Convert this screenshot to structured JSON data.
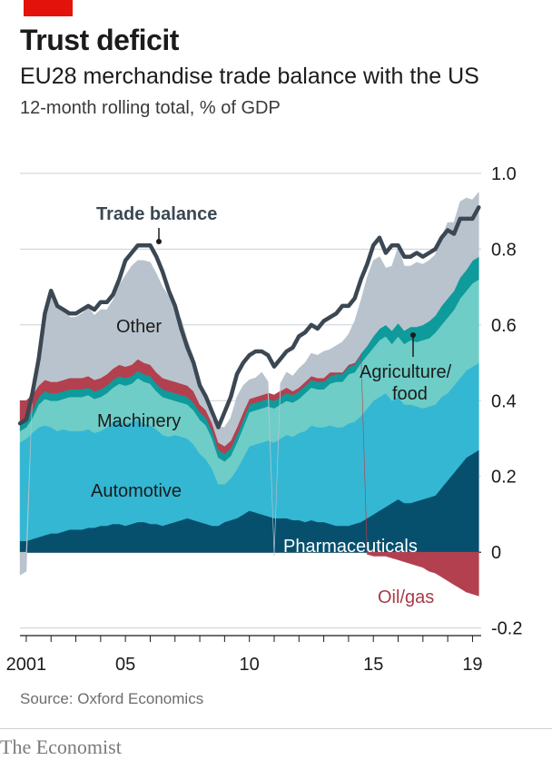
{
  "header": {
    "title": "Trust deficit",
    "subtitle": "EU28 merchandise trade balance with the US",
    "units": "12-month rolling total, % of GDP"
  },
  "footer": {
    "source": "Source: Oxford Economics",
    "brand": "The Economist"
  },
  "colors": {
    "pharmaceuticals": "#06506e",
    "automotive": "#34b7d3",
    "machinery": "#6ecdc7",
    "agriculture_food": "#0f9a9b",
    "oil_gas": "#b3404f",
    "other": "#b9c3cd",
    "trade_balance": "#3b4853",
    "accent": "#e3120b"
  },
  "chart_data": {
    "type": "area",
    "stacked": true,
    "x": [
      2000.75,
      2001,
      2001.25,
      2001.5,
      2001.75,
      2002,
      2002.25,
      2002.5,
      2002.75,
      2003,
      2003.25,
      2003.5,
      2003.75,
      2004,
      2004.25,
      2004.5,
      2004.75,
      2005,
      2005.25,
      2005.5,
      2005.75,
      2006,
      2006.25,
      2006.5,
      2006.75,
      2007,
      2007.25,
      2007.5,
      2007.75,
      2008,
      2008.25,
      2008.5,
      2008.75,
      2009,
      2009.25,
      2009.5,
      2009.75,
      2010,
      2010.25,
      2010.5,
      2010.75,
      2011,
      2011.25,
      2011.5,
      2011.75,
      2012,
      2012.25,
      2012.5,
      2012.75,
      2013,
      2013.25,
      2013.5,
      2013.75,
      2014,
      2014.25,
      2014.5,
      2014.75,
      2015,
      2015.25,
      2015.5,
      2015.75,
      2016,
      2016.25,
      2016.5,
      2016.75,
      2017,
      2017.25,
      2017.5,
      2017.75,
      2018,
      2018.25,
      2018.5,
      2018.75,
      2019,
      2019.25
    ],
    "xticks": [
      {
        "value": 2001,
        "label": "2001"
      },
      {
        "value": 2005,
        "label": "05"
      },
      {
        "value": 2010,
        "label": "10"
      },
      {
        "value": 2015,
        "label": "15"
      },
      {
        "value": 2019,
        "label": "19"
      }
    ],
    "yticks": [
      {
        "value": -0.2,
        "label": "-0.2"
      },
      {
        "value": 0,
        "label": "0"
      },
      {
        "value": 0.2,
        "label": "0.2"
      },
      {
        "value": 0.4,
        "label": "0.4"
      },
      {
        "value": 0.6,
        "label": "0.6"
      },
      {
        "value": 0.8,
        "label": "0.8"
      },
      {
        "value": 1.0,
        "label": "1.0"
      }
    ],
    "xlim": [
      2000.6,
      2019.35
    ],
    "ylim": [
      -0.22,
      1.05
    ],
    "grid": "horizontal",
    "series": [
      {
        "key": "pharmaceuticals",
        "name": "Pharmaceuticals",
        "values": [
          0.03,
          0.03,
          0.035,
          0.04,
          0.045,
          0.05,
          0.05,
          0.055,
          0.06,
          0.06,
          0.06,
          0.065,
          0.065,
          0.07,
          0.07,
          0.075,
          0.075,
          0.07,
          0.075,
          0.08,
          0.08,
          0.075,
          0.075,
          0.07,
          0.075,
          0.08,
          0.085,
          0.09,
          0.085,
          0.08,
          0.075,
          0.07,
          0.07,
          0.08,
          0.085,
          0.09,
          0.1,
          0.11,
          0.105,
          0.1,
          0.095,
          0.09,
          0.09,
          0.09,
          0.085,
          0.085,
          0.08,
          0.085,
          0.08,
          0.08,
          0.075,
          0.07,
          0.07,
          0.07,
          0.075,
          0.08,
          0.09,
          0.1,
          0.11,
          0.12,
          0.13,
          0.14,
          0.13,
          0.13,
          0.135,
          0.14,
          0.145,
          0.15,
          0.17,
          0.19,
          0.21,
          0.23,
          0.25,
          0.26,
          0.27
        ]
      },
      {
        "key": "automotive",
        "name": "Automotive",
        "values": [
          0.26,
          0.27,
          0.28,
          0.29,
          0.29,
          0.28,
          0.27,
          0.27,
          0.26,
          0.26,
          0.26,
          0.26,
          0.25,
          0.25,
          0.26,
          0.27,
          0.27,
          0.27,
          0.27,
          0.27,
          0.26,
          0.26,
          0.25,
          0.24,
          0.23,
          0.23,
          0.22,
          0.21,
          0.2,
          0.18,
          0.17,
          0.15,
          0.11,
          0.1,
          0.11,
          0.13,
          0.15,
          0.17,
          0.18,
          0.19,
          0.2,
          0.2,
          0.21,
          0.22,
          0.22,
          0.23,
          0.24,
          0.25,
          0.25,
          0.25,
          0.26,
          0.26,
          0.26,
          0.27,
          0.27,
          0.28,
          0.29,
          0.3,
          0.3,
          0.3,
          0.27,
          0.27,
          0.26,
          0.26,
          0.25,
          0.24,
          0.24,
          0.24,
          0.24,
          0.23,
          0.23,
          0.23,
          0.23,
          0.23,
          0.23
        ]
      },
      {
        "key": "machinery",
        "name": "Machinery",
        "values": [
          0.03,
          0.03,
          0.04,
          0.06,
          0.07,
          0.07,
          0.08,
          0.08,
          0.09,
          0.09,
          0.09,
          0.09,
          0.09,
          0.09,
          0.09,
          0.09,
          0.1,
          0.1,
          0.1,
          0.11,
          0.11,
          0.11,
          0.1,
          0.1,
          0.1,
          0.09,
          0.09,
          0.09,
          0.09,
          0.09,
          0.09,
          0.08,
          0.07,
          0.06,
          0.06,
          0.07,
          0.08,
          0.09,
          0.09,
          0.09,
          0.09,
          0.09,
          0.09,
          0.09,
          0.09,
          0.09,
          0.1,
          0.1,
          0.1,
          0.1,
          0.11,
          0.12,
          0.12,
          0.13,
          0.13,
          0.14,
          0.14,
          0.14,
          0.15,
          0.15,
          0.15,
          0.16,
          0.16,
          0.17,
          0.17,
          0.18,
          0.18,
          0.19,
          0.19,
          0.2,
          0.2,
          0.21,
          0.21,
          0.22,
          0.22
        ]
      },
      {
        "key": "agriculture_food",
        "name": "Agriculture/food",
        "values": [
          0.02,
          0.02,
          0.02,
          0.02,
          0.02,
          0.02,
          0.02,
          0.02,
          0.02,
          0.02,
          0.02,
          0.02,
          0.02,
          0.02,
          0.02,
          0.02,
          0.02,
          0.02,
          0.02,
          0.02,
          0.02,
          0.02,
          0.02,
          0.02,
          0.02,
          0.02,
          0.02,
          0.02,
          0.02,
          0.02,
          0.02,
          0.02,
          0.02,
          0.02,
          0.02,
          0.02,
          0.02,
          0.02,
          0.02,
          0.02,
          0.02,
          0.02,
          0.02,
          0.02,
          0.02,
          0.02,
          0.02,
          0.02,
          0.02,
          0.02,
          0.02,
          0.02,
          0.02,
          0.02,
          0.02,
          0.025,
          0.025,
          0.03,
          0.03,
          0.03,
          0.035,
          0.035,
          0.035,
          0.035,
          0.04,
          0.04,
          0.045,
          0.045,
          0.05,
          0.05,
          0.05,
          0.055,
          0.055,
          0.06,
          0.06
        ]
      },
      {
        "key": "oil_gas",
        "name": "Oil/gas",
        "values": [
          0.06,
          0.05,
          0.04,
          0.03,
          0.03,
          0.03,
          0.03,
          0.03,
          0.03,
          0.03,
          0.03,
          0.03,
          0.03,
          0.03,
          0.03,
          0.03,
          0.03,
          0.03,
          0.03,
          0.03,
          0.03,
          0.03,
          0.03,
          0.03,
          0.03,
          0.03,
          0.03,
          0.03,
          0.03,
          0.02,
          0.02,
          0.02,
          0.02,
          0.02,
          0.02,
          0.02,
          0.02,
          0.015,
          0.015,
          0.015,
          0.015,
          0.015,
          0.015,
          0.015,
          0.01,
          0.01,
          0.01,
          0.01,
          0.01,
          0.01,
          0.01,
          0.005,
          0.005,
          0.005,
          0.005,
          0.0,
          -0.005,
          -0.01,
          -0.01,
          -0.01,
          -0.015,
          -0.02,
          -0.025,
          -0.03,
          -0.035,
          -0.04,
          -0.05,
          -0.055,
          -0.065,
          -0.075,
          -0.085,
          -0.095,
          -0.105,
          -0.11,
          -0.115
        ]
      },
      {
        "key": "other",
        "name": "Other",
        "values": [
          -0.06,
          -0.05,
          0.01,
          0.07,
          0.18,
          0.24,
          0.2,
          0.19,
          0.16,
          0.16,
          0.17,
          0.18,
          0.17,
          0.18,
          0.17,
          0.18,
          0.21,
          0.24,
          0.26,
          0.26,
          0.27,
          0.27,
          0.26,
          0.24,
          0.22,
          0.19,
          0.17,
          0.12,
          0.09,
          0.06,
          0.03,
          0.01,
          0.04,
          0.05,
          0.06,
          0.08,
          0.07,
          0.05,
          0.05,
          0.06,
          0.03,
          -0.01,
          0.02,
          0.04,
          0.04,
          0.05,
          0.05,
          0.06,
          0.06,
          0.07,
          0.06,
          0.07,
          0.08,
          0.08,
          0.11,
          0.14,
          0.18,
          0.2,
          0.19,
          0.15,
          0.17,
          0.2,
          0.17,
          0.16,
          0.17,
          0.16,
          0.16,
          0.16,
          0.18,
          0.2,
          0.18,
          0.2,
          0.19,
          0.16,
          0.17
        ]
      },
      {
        "key": "trade_balance",
        "name": "Trade balance",
        "type": "line",
        "values": [
          0.34,
          0.35,
          0.42,
          0.51,
          0.63,
          0.69,
          0.65,
          0.64,
          0.63,
          0.63,
          0.64,
          0.65,
          0.64,
          0.66,
          0.66,
          0.68,
          0.72,
          0.77,
          0.79,
          0.81,
          0.81,
          0.81,
          0.78,
          0.74,
          0.69,
          0.65,
          0.59,
          0.54,
          0.5,
          0.44,
          0.41,
          0.37,
          0.33,
          0.37,
          0.41,
          0.47,
          0.5,
          0.52,
          0.53,
          0.53,
          0.52,
          0.49,
          0.51,
          0.53,
          0.54,
          0.57,
          0.58,
          0.6,
          0.59,
          0.61,
          0.62,
          0.63,
          0.65,
          0.65,
          0.67,
          0.72,
          0.76,
          0.81,
          0.83,
          0.79,
          0.81,
          0.81,
          0.78,
          0.78,
          0.79,
          0.78,
          0.79,
          0.8,
          0.83,
          0.85,
          0.84,
          0.88,
          0.88,
          0.88,
          0.91
        ]
      }
    ],
    "annotations": [
      {
        "text": "Trade balance",
        "series": "trade_balance"
      },
      {
        "text": "Other",
        "series": "other"
      },
      {
        "text": "Machinery",
        "series": "machinery"
      },
      {
        "text": "Automotive",
        "series": "automotive"
      },
      {
        "text": "Pharmaceuticals",
        "series": "pharmaceuticals"
      },
      {
        "text": "Oil/gas",
        "series": "oil_gas"
      },
      {
        "text": "Agriculture/",
        "series": "agriculture_food"
      },
      {
        "text": "food",
        "series": "agriculture_food"
      }
    ]
  }
}
